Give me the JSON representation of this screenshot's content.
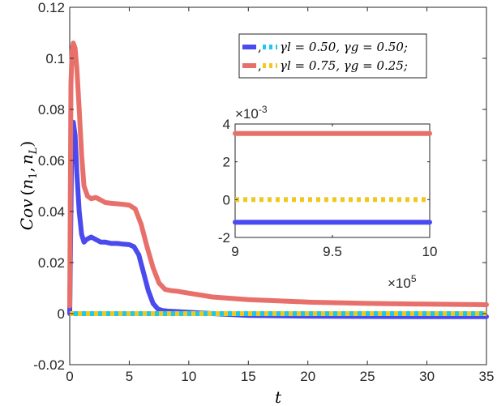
{
  "chart_data": [
    {
      "type": "line",
      "title": "",
      "xlabel": "t",
      "ylabel": "Cov (n1, nL)",
      "ylabel_parts": {
        "main": "Cov",
        "open": "(",
        "n": "n",
        "sub1": "1",
        "comma": ",",
        "sub2": "L",
        "close": ")"
      },
      "xlim": [
        0,
        35
      ],
      "ylim": [
        -0.02,
        0.12
      ],
      "xticks": [
        0,
        5,
        10,
        15,
        20,
        25,
        30,
        35
      ],
      "yticks": [
        -0.02,
        0,
        0.02,
        0.04,
        0.06,
        0.08,
        0.1,
        0.12
      ],
      "xtick_labels": [
        "0",
        "5",
        "10",
        "15",
        "20",
        "25",
        "30",
        "35"
      ],
      "ytick_labels": [
        "-0.02",
        "0",
        "0.02",
        "0.04",
        "0.06",
        "0.08",
        "0.1",
        "0.12"
      ],
      "grid": false,
      "legend_position": "top-right",
      "legend_entries": [
        {
          "label": "γl = 0.50, γg = 0.50;",
          "solid_color": "#4a4aee",
          "dotted_color": "#20c8e8"
        },
        {
          "label": "γl = 0.75, γg = 0.25;",
          "solid_color": "#e8706a",
          "dotted_color": "#f0c820"
        }
      ],
      "series": [
        {
          "color": "#4a4aee",
          "style": "solid",
          "x": [
            0,
            0.15,
            0.3,
            0.45,
            0.6,
            0.8,
            1.0,
            1.2,
            1.4,
            1.8,
            2.2,
            2.6,
            3.0,
            3.5,
            4.0,
            4.5,
            5.0,
            5.4,
            5.8,
            6.2,
            6.6,
            7.0,
            7.4,
            7.8,
            8.2,
            9,
            10,
            12,
            15,
            20,
            25,
            30,
            35
          ],
          "y": [
            0,
            0.06,
            0.075,
            0.07,
            0.055,
            0.04,
            0.031,
            0.028,
            0.029,
            0.03,
            0.029,
            0.028,
            0.028,
            0.0275,
            0.0275,
            0.0272,
            0.027,
            0.0262,
            0.023,
            0.016,
            0.009,
            0.004,
            0.0018,
            0.0012,
            0.001,
            0.0008,
            0.0005,
            0.0,
            -0.0007,
            -0.001,
            -0.0011,
            -0.0012,
            -0.0012
          ]
        },
        {
          "color": "#e8706a",
          "style": "solid",
          "x": [
            0,
            0.1,
            0.2,
            0.3,
            0.45,
            0.6,
            0.8,
            1.0,
            1.2,
            1.5,
            1.8,
            2.2,
            2.6,
            3.0,
            3.5,
            4.0,
            4.5,
            5.0,
            5.5,
            6.0,
            6.5,
            7.0,
            7.5,
            8.0,
            8.5,
            9.0,
            10,
            12,
            15,
            20,
            25,
            30,
            35
          ],
          "y": [
            0.003,
            0.09,
            0.103,
            0.106,
            0.104,
            0.096,
            0.08,
            0.062,
            0.05,
            0.046,
            0.045,
            0.0455,
            0.0445,
            0.0435,
            0.0432,
            0.043,
            0.0428,
            0.0425,
            0.041,
            0.035,
            0.026,
            0.018,
            0.012,
            0.0095,
            0.009,
            0.0088,
            0.008,
            0.0065,
            0.0055,
            0.0045,
            0.004,
            0.0037,
            0.0035
          ]
        },
        {
          "color": "#20c8e8",
          "style": "dotted",
          "x": [
            0,
            35
          ],
          "y": [
            0,
            0
          ]
        },
        {
          "color": "#f0c820",
          "style": "dotted",
          "x": [
            0,
            35
          ],
          "y": [
            0,
            0
          ]
        }
      ]
    },
    {
      "type": "line",
      "title": "",
      "xlabel": "",
      "ylabel": "",
      "xlim": [
        9,
        10
      ],
      "ylim": [
        -2,
        4
      ],
      "x_multiplier": {
        "base": "×10",
        "exp": "5"
      },
      "y_multiplier": {
        "base": "×10",
        "exp": "-3"
      },
      "xticks": [
        9,
        9.5,
        10
      ],
      "yticks": [
        -2,
        0,
        2,
        4
      ],
      "xtick_labels": [
        "9",
        "9.5",
        "10"
      ],
      "ytick_labels": [
        "-2",
        "0",
        "2",
        "4"
      ],
      "grid": false,
      "series": [
        {
          "color": "#e8706a",
          "style": "solid",
          "x": [
            9,
            10
          ],
          "y": [
            3.5,
            3.5
          ]
        },
        {
          "color": "#f0c820",
          "style": "dotted",
          "x": [
            9,
            10
          ],
          "y": [
            0,
            0
          ]
        },
        {
          "color": "#4a4aee",
          "style": "solid",
          "x": [
            9,
            10
          ],
          "y": [
            -1.2,
            -1.2
          ]
        }
      ]
    }
  ]
}
